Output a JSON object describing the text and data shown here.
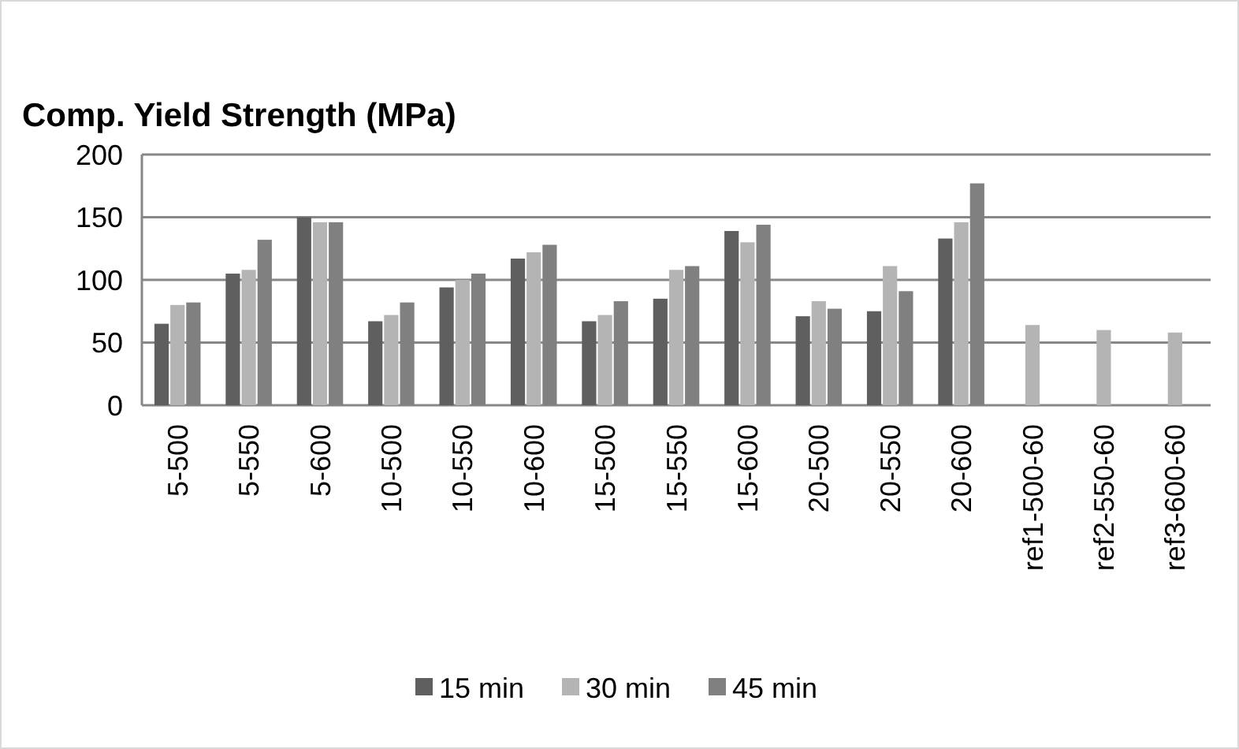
{
  "chart_data": {
    "type": "bar",
    "title": "Comp. Yield Strength (MPa)",
    "categories": [
      "5-500",
      "5-550",
      "5-600",
      "10-500",
      "10-550",
      "10-600",
      "15-500",
      "15-550",
      "15-600",
      "20-500",
      "20-550",
      "20-600",
      "ref1-500-60",
      "ref2-550-60",
      "ref3-600-60"
    ],
    "series": [
      {
        "name": "15 min",
        "color": "#5f5f5f",
        "values": [
          65,
          105,
          150,
          67,
          94,
          117,
          67,
          85,
          139,
          71,
          75,
          133,
          null,
          null,
          null
        ]
      },
      {
        "name": "30 min",
        "color": "#b4b4b4",
        "values": [
          80,
          108,
          146,
          72,
          100,
          122,
          72,
          108,
          130,
          83,
          111,
          146,
          64,
          60,
          58
        ]
      },
      {
        "name": "45 min",
        "color": "#808080",
        "values": [
          82,
          132,
          146,
          82,
          105,
          128,
          83,
          111,
          144,
          77,
          91,
          177,
          null,
          null,
          null
        ]
      }
    ],
    "ylim": [
      0,
      200
    ],
    "yticks": [
      0,
      50,
      100,
      150,
      200
    ],
    "grid": "y",
    "legend": "bottom"
  }
}
